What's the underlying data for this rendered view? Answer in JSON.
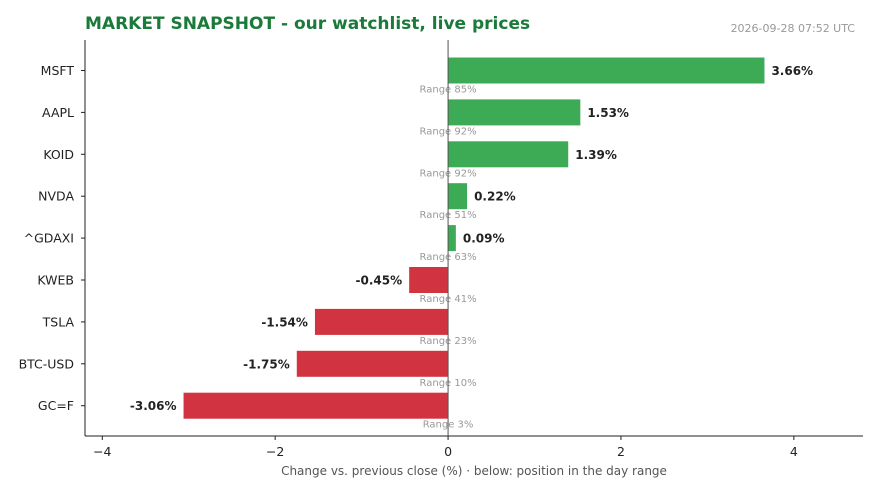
{
  "header": {
    "title": "MARKET SNAPSHOT - our watchlist, live prices",
    "timestamp": "2026-09-28 07:52 UTC"
  },
  "chart_data": {
    "type": "bar",
    "orientation": "horizontal",
    "xlabel": "Change vs. previous close (%)  ·  below: position in the day range",
    "xlim": [
      -4.2,
      4.8
    ],
    "xticks": [
      -4,
      -2,
      0,
      2,
      4
    ],
    "xtick_labels": [
      "−4",
      "−2",
      "0",
      "2",
      "4"
    ],
    "grid": false,
    "colors": {
      "positive": "#3daa55",
      "negative": "#d13440"
    },
    "categories": [
      "MSFT",
      "AAPL",
      "KOID",
      "NVDA",
      "^GDAXI",
      "KWEB",
      "TSLA",
      "BTC-USD",
      "GC=F"
    ],
    "values": [
      3.66,
      1.53,
      1.39,
      0.22,
      0.09,
      -0.45,
      -1.54,
      -1.75,
      -3.06
    ],
    "value_labels": [
      "3.66%",
      "1.53%",
      "1.39%",
      "0.22%",
      "0.09%",
      "-0.45%",
      "-1.54%",
      "-1.75%",
      "-3.06%"
    ],
    "range_labels": [
      "Range 85%",
      "Range 92%",
      "Range 92%",
      "Range 51%",
      "Range 63%",
      "Range 41%",
      "Range 23%",
      "Range 10%",
      "Range 3%"
    ]
  }
}
